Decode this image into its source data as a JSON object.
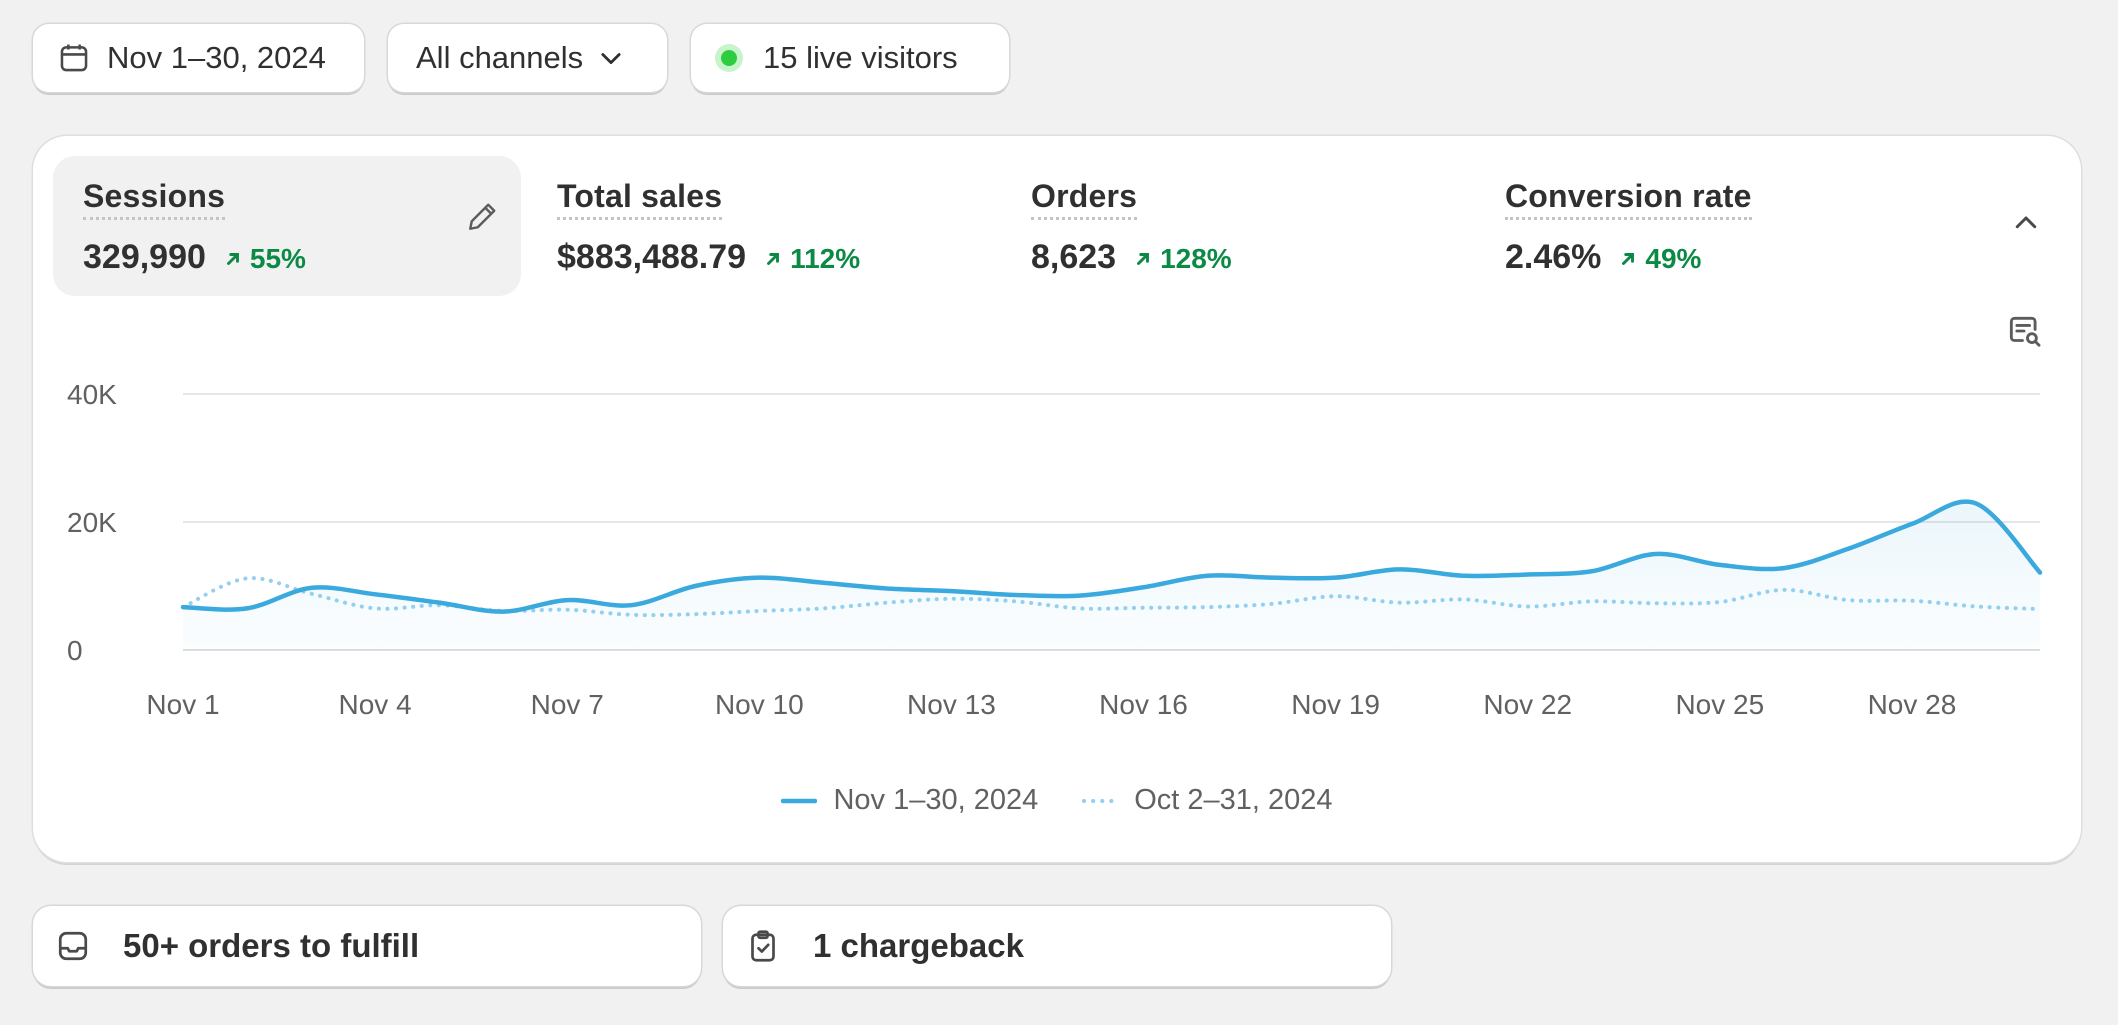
{
  "toolbar": {
    "date_range": "Nov 1–30, 2024",
    "channels": "All channels",
    "live_visitors": "15 live visitors",
    "live_color": "#2fcc3f"
  },
  "metrics": [
    {
      "label": "Sessions",
      "value": "329,990",
      "delta": "55%",
      "active": true
    },
    {
      "label": "Total sales",
      "value": "$883,488.79",
      "delta": "112%",
      "active": false
    },
    {
      "label": "Orders",
      "value": "8,623",
      "delta": "128%",
      "active": false
    },
    {
      "label": "Conversion rate",
      "value": "2.46%",
      "delta": "49%",
      "active": false
    }
  ],
  "icons": {
    "date": "calendar-icon",
    "channels": "chevron-down-icon",
    "edit": "pencil-icon",
    "collapse": "chevron-up-icon",
    "annotations": "annotation-search-icon",
    "delta": "arrow-up-right-icon",
    "orders_task": "inbox-icon",
    "chargeback_task": "clipboard-check-icon"
  },
  "colors": {
    "positive": "#0c8a45",
    "current_series": "#3aa9dd",
    "previous_series": "#93cfef"
  },
  "chart_data": {
    "type": "line",
    "x": [
      "Nov 1",
      "Nov 2",
      "Nov 3",
      "Nov 4",
      "Nov 5",
      "Nov 6",
      "Nov 7",
      "Nov 8",
      "Nov 9",
      "Nov 10",
      "Nov 11",
      "Nov 12",
      "Nov 13",
      "Nov 14",
      "Nov 15",
      "Nov 16",
      "Nov 17",
      "Nov 18",
      "Nov 19",
      "Nov 20",
      "Nov 21",
      "Nov 22",
      "Nov 23",
      "Nov 24",
      "Nov 25",
      "Nov 26",
      "Nov 27",
      "Nov 28",
      "Nov 29",
      "Nov 30"
    ],
    "xticks": [
      "Nov 1",
      "Nov 4",
      "Nov 7",
      "Nov 10",
      "Nov 13",
      "Nov 16",
      "Nov 19",
      "Nov 22",
      "Nov 25",
      "Nov 28"
    ],
    "yticks": [
      "0",
      "20K",
      "40K"
    ],
    "ylim": [
      0,
      40000
    ],
    "grid": true,
    "legend_position": "bottom-center",
    "series": [
      {
        "name": "Nov 1–30, 2024",
        "style": "solid",
        "values": [
          6700,
          6500,
          9700,
          8700,
          7400,
          6000,
          7800,
          7000,
          10000,
          11300,
          10500,
          9600,
          9200,
          8600,
          8500,
          9800,
          11600,
          11300,
          11300,
          12600,
          11600,
          11800,
          12300,
          15000,
          13300,
          12800,
          15800,
          19700,
          22900,
          12100
        ]
      },
      {
        "name": "Oct 2–31, 2024",
        "style": "dotted",
        "values": [
          6700,
          11200,
          8800,
          6500,
          7000,
          6100,
          6300,
          5500,
          5600,
          6100,
          6500,
          7400,
          8000,
          7600,
          6500,
          6600,
          6700,
          7200,
          8400,
          7400,
          7900,
          6800,
          7600,
          7300,
          7500,
          9400,
          7800,
          7700,
          6800,
          6400
        ]
      }
    ]
  },
  "tasks": {
    "orders": "50+ orders to fulfill",
    "chargeback": "1 chargeback"
  }
}
